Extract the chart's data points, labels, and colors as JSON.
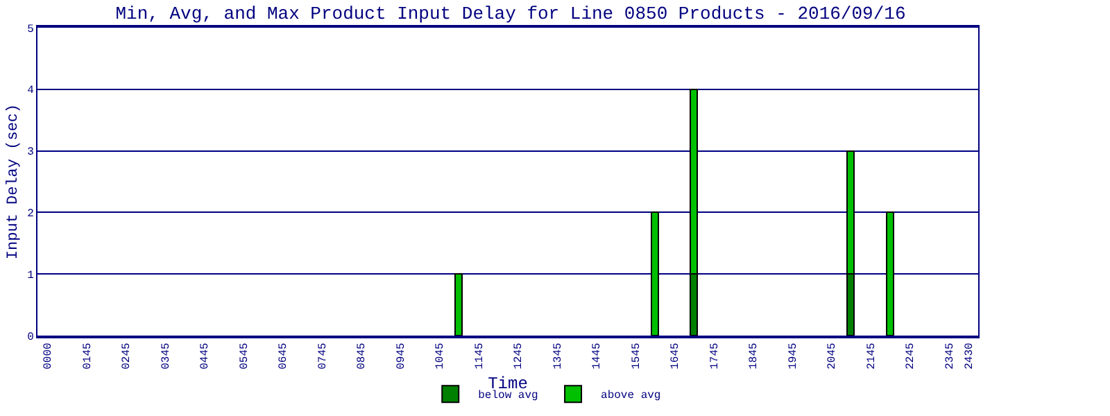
{
  "chart_data": {
    "type": "bar",
    "title": "Min, Avg, and Max Product Input Delay for Line 0850 Products - 2016/09/16",
    "xlabel": "Time",
    "ylabel": "Input Delay (sec)",
    "categories": [
      "0000",
      null,
      "0145",
      null,
      "0245",
      null,
      "0345",
      null,
      "0445",
      null,
      "0545",
      null,
      "0645",
      null,
      "0745",
      null,
      "0845",
      null,
      "0945",
      null,
      "1045",
      null,
      "1145",
      null,
      "1245",
      null,
      "1345",
      null,
      "1445",
      null,
      "1545",
      null,
      "1645",
      null,
      "1745",
      null,
      "1845",
      null,
      "1945",
      null,
      "2045",
      null,
      "2145",
      null,
      "2245",
      null,
      "2345",
      "2430"
    ],
    "stacked": true,
    "series": [
      {
        "name": "below avg",
        "color": "#008000",
        "values": [
          null,
          null,
          null,
          null,
          null,
          null,
          null,
          null,
          null,
          null,
          null,
          null,
          null,
          null,
          null,
          null,
          null,
          null,
          null,
          null,
          null,
          0,
          null,
          null,
          null,
          null,
          null,
          null,
          null,
          null,
          null,
          0,
          null,
          1,
          null,
          null,
          null,
          null,
          null,
          null,
          null,
          1,
          null,
          0,
          null,
          null,
          null,
          null
        ]
      },
      {
        "name": "above avg",
        "color": "#00c000",
        "values": [
          null,
          null,
          null,
          null,
          null,
          null,
          null,
          null,
          null,
          null,
          null,
          null,
          null,
          null,
          null,
          null,
          null,
          null,
          null,
          null,
          null,
          1,
          null,
          null,
          null,
          null,
          null,
          null,
          null,
          null,
          null,
          2,
          null,
          3,
          null,
          null,
          null,
          null,
          null,
          null,
          null,
          2,
          null,
          2,
          null,
          null,
          null,
          null
        ]
      }
    ],
    "ylim": [
      0,
      5
    ],
    "yticks": [
      0,
      1,
      2,
      3,
      4,
      5
    ],
    "grid": "y",
    "legend": "bottom"
  }
}
